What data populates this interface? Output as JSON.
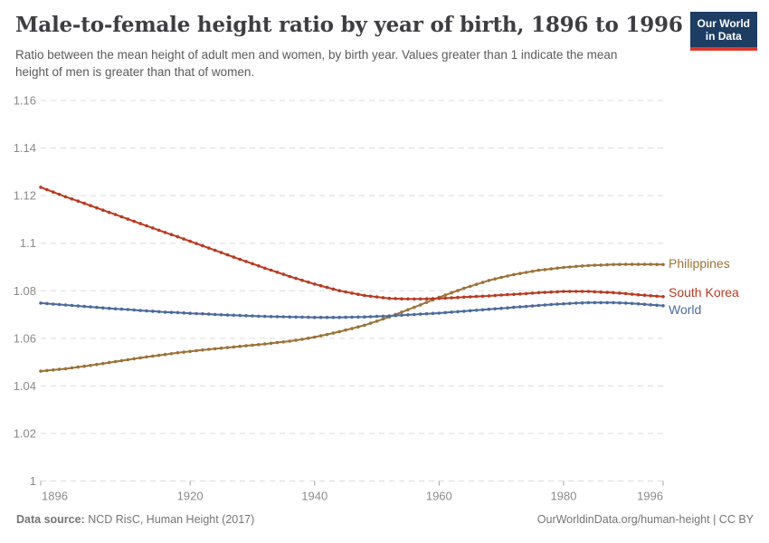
{
  "header": {
    "title": "Male-to-female height ratio by year of birth, 1896 to 1996",
    "subtitle": "Ratio between the mean height of adult men and women, by birth year. Values greater than 1 indicate the mean height of men is greater than that of women.",
    "logo": {
      "line1": "Our World",
      "line2": "in Data",
      "bg_color": "#1d3d63",
      "bar_color": "#e0362a"
    }
  },
  "footer": {
    "source_label": "Data source:",
    "source_text": " NCD RisC, Human Height (2017)",
    "rights": "OurWorldinData.org/human-height | CC BY"
  },
  "colors": {
    "grid": "#dcdcdc",
    "tick_label": "#8a8a8a",
    "axis_tick": "#a3a3a3",
    "title": "#3d3d42",
    "subtitle": "#5a5a5a",
    "footer": "#757575"
  },
  "chart_data": {
    "type": "line",
    "title": "Male-to-female height ratio by year of birth, 1896 to 1996",
    "xlabel": "",
    "ylabel": "",
    "xlim": [
      1896,
      1996
    ],
    "ylim": [
      1,
      1.16
    ],
    "grid": "horizontal-dashed",
    "legend_position": "right-of-line-ends",
    "x_ticks": [
      {
        "v": 1896,
        "label": "1896"
      },
      {
        "v": 1920,
        "label": "1920"
      },
      {
        "v": 1940,
        "label": "1940"
      },
      {
        "v": 1960,
        "label": "1960"
      },
      {
        "v": 1980,
        "label": "1980"
      },
      {
        "v": 1996,
        "label": "1996"
      }
    ],
    "y_ticks": [
      {
        "v": 1,
        "label": "1"
      },
      {
        "v": 1.02,
        "label": "1.02"
      },
      {
        "v": 1.04,
        "label": "1.04"
      },
      {
        "v": 1.06,
        "label": "1.06"
      },
      {
        "v": 1.08,
        "label": "1.08"
      },
      {
        "v": 1.1,
        "label": "1.1"
      },
      {
        "v": 1.12,
        "label": "1.12"
      },
      {
        "v": 1.14,
        "label": "1.14"
      },
      {
        "v": 1.16,
        "label": "1.16"
      }
    ],
    "x": [
      1896,
      1898,
      1900,
      1902,
      1904,
      1906,
      1908,
      1910,
      1912,
      1914,
      1916,
      1918,
      1920,
      1922,
      1924,
      1926,
      1928,
      1930,
      1932,
      1934,
      1936,
      1938,
      1940,
      1942,
      1944,
      1946,
      1948,
      1950,
      1952,
      1954,
      1956,
      1958,
      1960,
      1962,
      1964,
      1966,
      1968,
      1970,
      1972,
      1974,
      1976,
      1978,
      1980,
      1982,
      1984,
      1986,
      1988,
      1990,
      1992,
      1994,
      1996
    ],
    "series": [
      {
        "name": "Philippines",
        "color": "#9B7339",
        "label_dy": 0,
        "values": [
          1.0462,
          1.0467,
          1.0472,
          1.0479,
          1.0486,
          1.0494,
          1.0502,
          1.051,
          1.0518,
          1.0525,
          1.0532,
          1.0539,
          1.0545,
          1.0551,
          1.0556,
          1.0561,
          1.0566,
          1.0571,
          1.0576,
          1.0582,
          1.0588,
          1.0596,
          1.0605,
          1.0616,
          1.0628,
          1.0641,
          1.0655,
          1.0672,
          1.069,
          1.071,
          1.073,
          1.0751,
          1.0772,
          1.0791,
          1.081,
          1.0827,
          1.0843,
          1.0856,
          1.0868,
          1.0877,
          1.0886,
          1.0892,
          1.0898,
          1.0902,
          1.0906,
          1.0908,
          1.091,
          1.0911,
          1.0911,
          1.0911,
          1.091
        ]
      },
      {
        "name": "South Korea",
        "color": "#B93A23",
        "label_dy": -4,
        "values": [
          1.1235,
          1.1215,
          1.1195,
          1.1177,
          1.1158,
          1.1139,
          1.112,
          1.1101,
          1.1082,
          1.1064,
          1.1045,
          1.1027,
          1.1008,
          1.0989,
          1.097,
          1.0951,
          1.0932,
          1.0914,
          1.0895,
          1.0878,
          1.086,
          1.0844,
          1.0828,
          1.0814,
          1.08,
          1.079,
          1.078,
          1.0774,
          1.0768,
          1.0766,
          1.0765,
          1.0766,
          1.0768,
          1.077,
          1.0773,
          1.0776,
          1.0778,
          1.0782,
          1.0785,
          1.0788,
          1.0792,
          1.0794,
          1.0797,
          1.0797,
          1.0797,
          1.0794,
          1.0792,
          1.0788,
          1.0783,
          1.0779,
          1.0775
        ]
      },
      {
        "name": "World",
        "color": "#4C6A9C",
        "label_dy": 5,
        "values": [
          1.0748,
          1.0744,
          1.074,
          1.0736,
          1.0732,
          1.0728,
          1.0724,
          1.0721,
          1.0717,
          1.0714,
          1.071,
          1.0708,
          1.0705,
          1.0703,
          1.07,
          1.0698,
          1.0696,
          1.0694,
          1.0692,
          1.0691,
          1.069,
          1.0689,
          1.0688,
          1.0688,
          1.0688,
          1.0689,
          1.069,
          1.0692,
          1.0694,
          1.0697,
          1.07,
          1.0703,
          1.0706,
          1.071,
          1.0714,
          1.0718,
          1.0722,
          1.0726,
          1.073,
          1.0734,
          1.0738,
          1.0742,
          1.0745,
          1.0748,
          1.075,
          1.075,
          1.075,
          1.0748,
          1.0745,
          1.0741,
          1.0737
        ]
      }
    ]
  }
}
